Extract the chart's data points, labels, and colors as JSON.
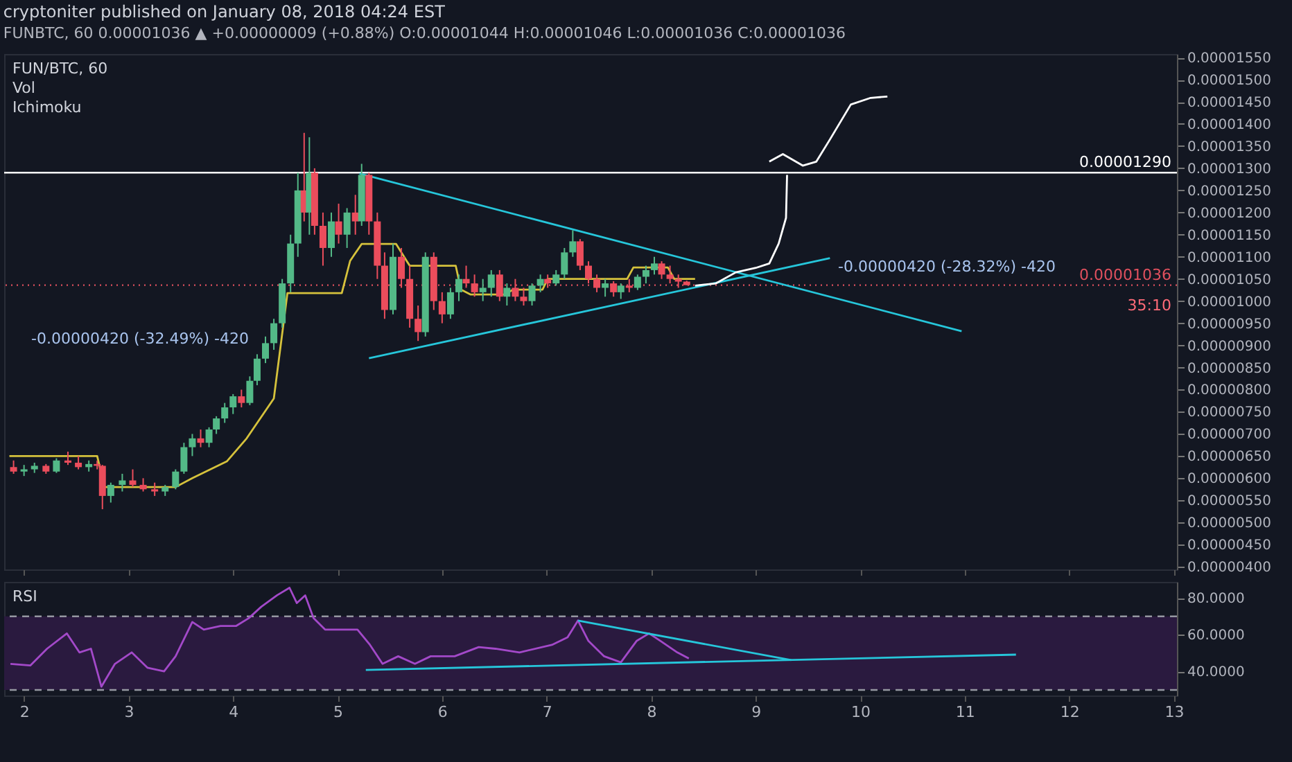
{
  "chart_data": [
    {
      "type": "candlestick",
      "title": "cryptoniter published on January 08, 2018 04:24 EST",
      "subtitle": "FUNBTC, 60 0.00001036 ▲ +0.00000009 (+0.88%) O:0.00001044 H:0.00001046 L:0.00001036 C:0.00001036",
      "x": [
        1.9,
        2.0,
        2.1,
        2.21,
        2.31,
        2.42,
        2.52,
        2.62,
        2.7,
        2.75,
        2.83,
        2.94,
        3.04,
        3.14,
        3.25,
        3.35,
        3.45,
        3.53,
        3.61,
        3.69,
        3.77,
        3.84,
        3.92,
        4.0,
        4.08,
        4.16,
        4.23,
        4.31,
        4.39,
        4.47,
        4.55,
        4.62,
        4.68,
        4.73,
        4.78,
        4.86,
        4.94,
        5.01,
        5.09,
        5.17,
        5.23,
        5.3,
        5.38,
        5.45,
        5.53,
        5.61,
        5.69,
        5.77,
        5.84,
        5.92,
        6.0,
        6.08,
        6.16,
        6.23,
        6.31,
        6.39,
        6.47,
        6.55,
        6.62,
        6.7,
        6.78,
        6.86,
        6.94,
        7.01,
        7.09,
        7.17,
        7.25,
        7.32,
        7.4,
        7.48,
        7.56,
        7.64,
        7.71,
        7.79,
        7.87,
        7.95,
        8.03,
        8.1,
        8.18,
        8.26,
        8.34
      ],
      "ohlc": [
        [
          6.25e-06,
          6.4e-06,
          6.1e-06,
          6.15e-06
        ],
        [
          6.15e-06,
          6.3e-06,
          6.05e-06,
          6.2e-06
        ],
        [
          6.2e-06,
          6.35e-06,
          6.12e-06,
          6.28e-06
        ],
        [
          6.28e-06,
          6.32e-06,
          6.1e-06,
          6.15e-06
        ],
        [
          6.15e-06,
          6.45e-06,
          6.12e-06,
          6.4e-06
        ],
        [
          6.4e-06,
          6.6e-06,
          6.3e-06,
          6.35e-06
        ],
        [
          6.35e-06,
          6.5e-06,
          6.2e-06,
          6.25e-06
        ],
        [
          6.25e-06,
          6.4e-06,
          6.15e-06,
          6.32e-06
        ],
        [
          6.32e-06,
          6.4e-06,
          6.2e-06,
          6.28e-06
        ],
        [
          6.28e-06,
          6.3e-06,
          5.3e-06,
          5.6e-06
        ],
        [
          5.6e-06,
          5.9e-06,
          5.45e-06,
          5.85e-06
        ],
        [
          5.85e-06,
          6.1e-06,
          5.7e-06,
          5.95e-06
        ],
        [
          5.95e-06,
          6.2e-06,
          5.8e-06,
          5.85e-06
        ],
        [
          5.85e-06,
          6e-06,
          5.7e-06,
          5.75e-06
        ],
        [
          5.75e-06,
          5.9e-06,
          5.6e-06,
          5.7e-06
        ],
        [
          5.7e-06,
          5.85e-06,
          5.6e-06,
          5.8e-06
        ],
        [
          5.8e-06,
          6.2e-06,
          5.75e-06,
          6.15e-06
        ],
        [
          6.15e-06,
          6.8e-06,
          6.1e-06,
          6.7e-06
        ],
        [
          6.7e-06,
          7e-06,
          6.5e-06,
          6.9e-06
        ],
        [
          6.9e-06,
          7.1e-06,
          6.7e-06,
          6.8e-06
        ],
        [
          6.8e-06,
          7.15e-06,
          6.7e-06,
          7.1e-06
        ],
        [
          7.1e-06,
          7.4e-06,
          7e-06,
          7.35e-06
        ],
        [
          7.35e-06,
          7.7e-06,
          7.25e-06,
          7.6e-06
        ],
        [
          7.6e-06,
          7.9e-06,
          7.45e-06,
          7.85e-06
        ],
        [
          7.85e-06,
          8e-06,
          7.6e-06,
          7.7e-06
        ],
        [
          7.7e-06,
          8.3e-06,
          7.65e-06,
          8.2e-06
        ],
        [
          8.2e-06,
          8.8e-06,
          8.1e-06,
          8.7e-06
        ],
        [
          8.7e-06,
          9.2e-06,
          8.6e-06,
          9.05e-06
        ],
        [
          9.05e-06,
          9.6e-06,
          8.9e-06,
          9.5e-06
        ],
        [
          9.5e-06,
          1.05e-05,
          9.4e-06,
          1.04e-05
        ],
        [
          1.04e-05,
          1.15e-05,
          1.02e-05,
          1.13e-05
        ],
        [
          1.13e-05,
          1.29e-05,
          1.1e-05,
          1.25e-05
        ],
        [
          1.25e-05,
          1.38e-05,
          1.18e-05,
          1.2e-05
        ],
        [
          1.2e-05,
          1.37e-05,
          1.15e-05,
          1.29e-05
        ],
        [
          1.29e-05,
          1.3e-05,
          1.15e-05,
          1.17e-05
        ],
        [
          1.17e-05,
          1.2e-05,
          1.08e-05,
          1.12e-05
        ],
        [
          1.12e-05,
          1.2e-05,
          1.1e-05,
          1.18e-05
        ],
        [
          1.18e-05,
          1.22e-05,
          1.13e-05,
          1.15e-05
        ],
        [
          1.15e-05,
          1.21e-05,
          1.12e-05,
          1.2e-05
        ],
        [
          1.2e-05,
          1.24e-05,
          1.15e-05,
          1.18e-05
        ],
        [
          1.18e-05,
          1.31e-05,
          1.17e-05,
          1.285e-05
        ],
        [
          1.285e-05,
          1.29e-05,
          1.15e-05,
          1.18e-05
        ],
        [
          1.18e-05,
          1.2e-05,
          1.05e-05,
          1.08e-05
        ],
        [
          1.08e-05,
          1.11e-05,
          9.6e-06,
          9.8e-06
        ],
        [
          9.8e-06,
          1.13e-05,
          9.7e-06,
          1.1e-05
        ],
        [
          1.1e-05,
          1.12e-05,
          1.03e-05,
          1.05e-05
        ],
        [
          1.05e-05,
          1.08e-05,
          9.4e-06,
          9.6e-06
        ],
        [
          9.6e-06,
          9.9e-06,
          9.1e-06,
          9.3e-06
        ],
        [
          9.3e-06,
          1.11e-05,
          9.2e-06,
          1.1e-05
        ],
        [
          1.1e-05,
          1.11e-05,
          9.8e-06,
          1e-05
        ],
        [
          1e-05,
          1.02e-05,
          9.5e-06,
          9.7e-06
        ],
        [
          9.7e-06,
          1.03e-05,
          9.6e-06,
          1.02e-05
        ],
        [
          1.02e-05,
          1.06e-05,
          1e-05,
          1.05e-05
        ],
        [
          1.05e-05,
          1.08e-05,
          1.03e-05,
          1.04e-05
        ],
        [
          1.04e-05,
          1.06e-05,
          1.01e-05,
          1.02e-05
        ],
        [
          1.02e-05,
          1.05e-05,
          1e-05,
          1.03e-05
        ],
        [
          1.03e-05,
          1.07e-05,
          1.01e-05,
          1.06e-05
        ],
        [
          1.06e-05,
          1.07e-05,
          1e-05,
          1.01e-05
        ],
        [
          1.01e-05,
          1.04e-05,
          9.9e-06,
          1.03e-05
        ],
        [
          1.03e-05,
          1.05e-05,
          1e-05,
          1.01e-05
        ],
        [
          1.01e-05,
          1.03e-05,
          9.9e-06,
          1e-05
        ],
        [
          1e-05,
          1.04e-05,
          9.9e-06,
          1.035e-05
        ],
        [
          1.035e-05,
          1.06e-05,
          1.02e-05,
          1.05e-05
        ],
        [
          1.05e-05,
          1.06e-05,
          1.03e-05,
          1.04e-05
        ],
        [
          1.04e-05,
          1.07e-05,
          1.035e-05,
          1.06e-05
        ],
        [
          1.06e-05,
          1.12e-05,
          1.05e-05,
          1.11e-05
        ],
        [
          1.11e-05,
          1.16e-05,
          1.1e-05,
          1.135e-05
        ],
        [
          1.135e-05,
          1.14e-05,
          1.07e-05,
          1.08e-05
        ],
        [
          1.08e-05,
          1.09e-05,
          1.04e-05,
          1.05e-05
        ],
        [
          1.05e-05,
          1.06e-05,
          1.02e-05,
          1.03e-05
        ],
        [
          1.03e-05,
          1.05e-05,
          1.01e-05,
          1.04e-05
        ],
        [
          1.04e-05,
          1.045e-05,
          1.01e-05,
          1.02e-05
        ],
        [
          1.02e-05,
          1.04e-05,
          1.005e-05,
          1.035e-05
        ],
        [
          1.035e-05,
          1.05e-05,
          1.02e-05,
          1.03e-05
        ],
        [
          1.03e-05,
          1.06e-05,
          1.025e-05,
          1.055e-05
        ],
        [
          1.055e-05,
          1.08e-05,
          1.04e-05,
          1.07e-05
        ],
        [
          1.07e-05,
          1.1e-05,
          1.06e-05,
          1.085e-05
        ],
        [
          1.085e-05,
          1.09e-05,
          1.05e-05,
          1.06e-05
        ],
        [
          1.06e-05,
          1.08e-05,
          1.04e-05,
          1.05e-05
        ],
        [
          1.05e-05,
          1.06e-05,
          1.03e-05,
          1.044e-05
        ],
        [
          1.044e-05,
          1.046e-05,
          1.036e-05,
          1.036e-05
        ]
      ],
      "series": [
        {
          "type": "line",
          "color": "#d6c23c",
          "x": [
            1.86,
            2.7,
            2.77,
            3.45,
            3.61,
            3.94,
            4.13,
            4.39,
            4.52,
            5.04,
            5.12,
            5.23,
            5.56,
            5.66,
            5.69,
            6.13,
            6.18,
            6.27,
            6.6,
            6.68,
            6.96,
            7.01,
            7.77,
            7.83,
            8.16,
            8.22,
            8.42
          ],
          "values": [
            6.5e-06,
            6.5e-06,
            5.8e-06,
            5.8e-06,
            6e-06,
            6.38e-06,
            6.9e-06,
            7.8e-06,
            1.018e-05,
            1.018e-05,
            1.091e-05,
            1.129e-05,
            1.129e-05,
            1.091e-05,
            1.08e-05,
            1.08e-05,
            1.026e-05,
            1.015e-05,
            1.015e-05,
            1.026e-05,
            1.026e-05,
            1.05e-05,
            1.05e-05,
            1.076e-05,
            1.076e-05,
            1.05e-05,
            1.05e-05
          ]
        },
        {
          "type": "line",
          "color": "#26c6da",
          "x": [
            5.21,
            10.97
          ],
          "values": [
            1.288e-05,
            9.32e-06
          ]
        },
        {
          "type": "line",
          "color": "#26c6da",
          "x": [
            5.3,
            9.71
          ],
          "values": [
            8.71e-06,
            1.097e-05
          ]
        },
        {
          "type": "line",
          "color": "#ffffff",
          "x": [
            8.42,
            8.62,
            8.81,
            9.0,
            9.13,
            9.22,
            9.29,
            9.3
          ],
          "values": [
            1.035e-05,
            1.04e-05,
            1.065e-05,
            1.075e-05,
            1.085e-05,
            1.13e-05,
            1.188e-05,
            1.285e-05
          ]
        },
        {
          "type": "line",
          "color": "#ffffff",
          "x": [
            9.13,
            9.26,
            9.45,
            9.58,
            9.71,
            9.91,
            10.1,
            10.26
          ],
          "values": [
            1.315e-05,
            1.332e-05,
            1.306e-05,
            1.315e-05,
            1.365e-05,
            1.444e-05,
            1.459e-05,
            1.462e-05
          ]
        }
      ],
      "ref_lines": [
        {
          "axis": "y",
          "value": 1.29e-05,
          "label": "0.00001290",
          "color": "#ffffff",
          "line_style": "solid"
        },
        {
          "axis": "y",
          "value": 1.036e-05,
          "label": "0.00001036",
          "color": "#e0505e",
          "line_style": "dotted"
        }
      ],
      "annotations": [
        "FUN/BTC, 60",
        "Vol",
        "Ichimoku",
        "35:10",
        "-0.00000420 (-32.49%) -420",
        "-0.00000420 (-28.32%) -420"
      ],
      "xlim": [
        1.81,
        13.03
      ],
      "ylim": [
        3.94e-06,
        1.558e-05
      ],
      "yticks": [
        {
          "value": 4e-06,
          "label": "0.00000400"
        },
        {
          "value": 4.5e-06,
          "label": "0.00000450"
        },
        {
          "value": 5e-06,
          "label": "0.00000500"
        },
        {
          "value": 5.5e-06,
          "label": "0.00000550"
        },
        {
          "value": 6e-06,
          "label": "0.00000600"
        },
        {
          "value": 6.5e-06,
          "label": "0.00000650"
        },
        {
          "value": 7e-06,
          "label": "0.00000700"
        },
        {
          "value": 7.5e-06,
          "label": "0.00000750"
        },
        {
          "value": 8e-06,
          "label": "0.00000800"
        },
        {
          "value": 8.5e-06,
          "label": "0.00000850"
        },
        {
          "value": 9e-06,
          "label": "0.00000900"
        },
        {
          "value": 9.5e-06,
          "label": "0.00000950"
        },
        {
          "value": 1e-05,
          "label": "0.00001000"
        },
        {
          "value": 1.05e-05,
          "label": "0.00001050"
        },
        {
          "value": 1.1e-05,
          "label": "0.00001100"
        },
        {
          "value": 1.15e-05,
          "label": "0.00001150"
        },
        {
          "value": 1.2e-05,
          "label": "0.00001200"
        },
        {
          "value": 1.25e-05,
          "label": "0.00001250"
        },
        {
          "value": 1.3e-05,
          "label": "0.00001300"
        },
        {
          "value": 1.35e-05,
          "label": "0.00001350"
        },
        {
          "value": 1.4e-05,
          "label": "0.00001400"
        },
        {
          "value": 1.45e-05,
          "label": "0.00001450"
        },
        {
          "value": 1.5e-05,
          "label": "0.00001500"
        },
        {
          "value": 1.55e-05,
          "label": "0.00001550"
        }
      ],
      "xticks": [
        2,
        3,
        4,
        5,
        6,
        7,
        8,
        9,
        10,
        11,
        12,
        13
      ],
      "tick_labels": "y"
    },
    {
      "type": "line",
      "series": [
        {
          "color": "#a349c9",
          "x": [
            1.87,
            2.06,
            2.22,
            2.41,
            2.53,
            2.64,
            2.74,
            2.87,
            3.03,
            3.18,
            3.34,
            3.45,
            3.61,
            3.72,
            3.88,
            4.03,
            4.15,
            4.27,
            4.42,
            4.54,
            4.61,
            4.69,
            4.77,
            4.88,
            5.04,
            5.19,
            5.31,
            5.43,
            5.58,
            5.74,
            5.89,
            6.12,
            6.35,
            6.51,
            6.74,
            7.05,
            7.2,
            7.3,
            7.4,
            7.55,
            7.71,
            7.86,
            7.98,
            8.09,
            8.25,
            8.36
          ],
          "values": [
            44.2,
            43.3,
            52.4,
            60.7,
            50.4,
            52.4,
            31.8,
            44.2,
            50.4,
            42.1,
            40.1,
            48.3,
            66.9,
            62.8,
            64.8,
            64.8,
            69,
            75.2,
            81.4,
            85.5,
            77.2,
            81.4,
            69,
            62.8,
            62.8,
            62.8,
            54.5,
            44.2,
            48.3,
            44.2,
            48.3,
            48.3,
            53.3,
            52.4,
            50.4,
            54.5,
            58.6,
            67.7,
            56.6,
            48.3,
            45,
            56.6,
            60.7,
            56.6,
            50.4,
            47.1
          ]
        },
        {
          "type": "line",
          "color": "#26c6da",
          "x": [
            5.27,
            11.49
          ],
          "values": [
            40.9,
            49.2
          ]
        },
        {
          "type": "line",
          "color": "#26c6da",
          "x": [
            7.3,
            9.34
          ],
          "values": [
            67.7,
            46.2
          ]
        }
      ],
      "bands": [
        {
          "axis": "y",
          "from": 30,
          "to": 70,
          "color": "#2a1a3f"
        }
      ],
      "ref_lines": [
        {
          "axis": "y",
          "value": 30,
          "color": "#9598a1",
          "line_style": "dashed"
        },
        {
          "axis": "y",
          "value": 70,
          "color": "#9598a1",
          "line_style": "dashed"
        }
      ],
      "annotations": [
        "RSI"
      ],
      "xlim": [
        1.81,
        13.03
      ],
      "xticks": [
        2,
        3,
        4,
        5,
        6,
        7,
        8,
        9,
        10,
        11,
        12,
        13
      ],
      "ylim": [
        27,
        88.7
      ],
      "yticks": [
        {
          "value": 40,
          "label": "40.0000"
        },
        {
          "value": 60,
          "label": "60.0000"
        },
        {
          "value": 80,
          "label": "80.0000"
        }
      ]
    }
  ]
}
